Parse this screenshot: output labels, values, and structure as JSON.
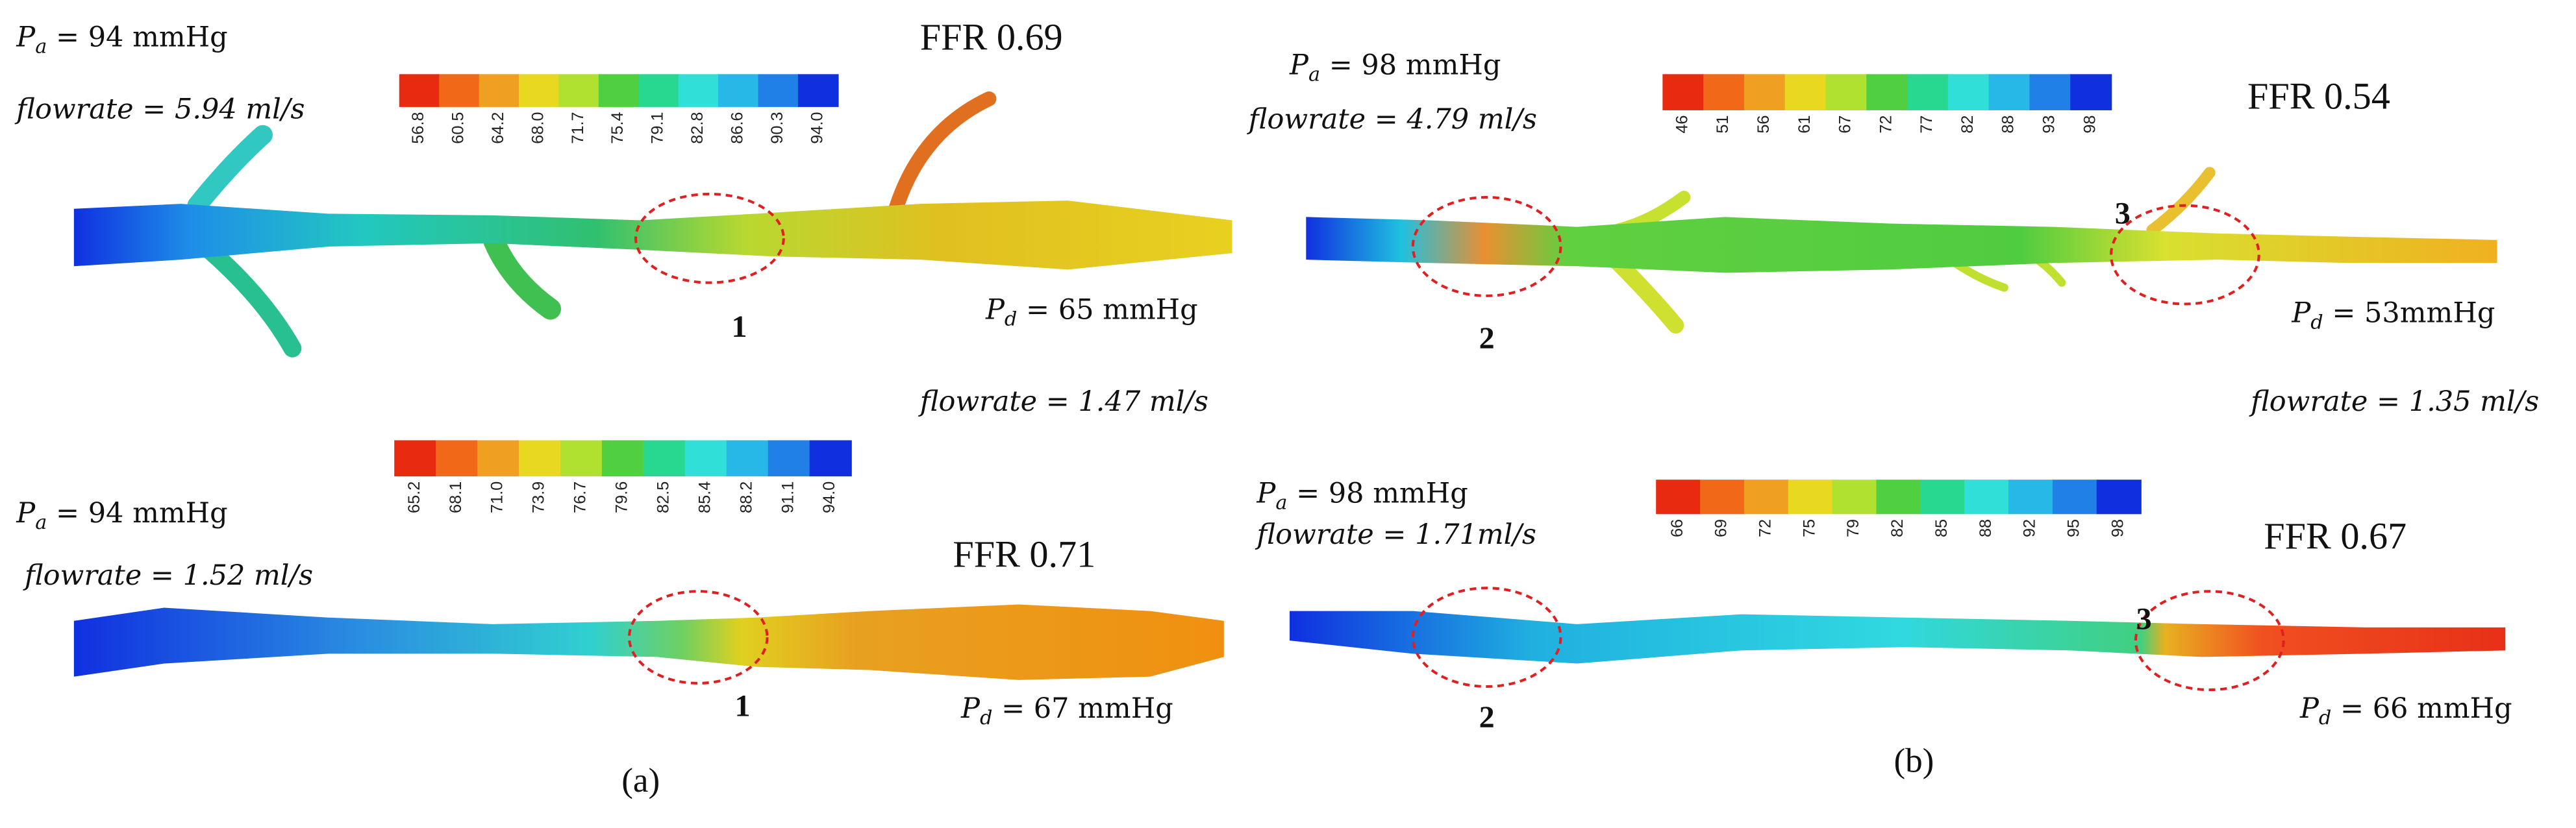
{
  "panels": [
    {
      "pa": {
        "var": "P",
        "sub": "a",
        "rest": " = 94 mmHg"
      },
      "flow_in": "flowrate = 5.94 ml/s",
      "ffr": "FFR 0.69",
      "colorbar": [
        "56.8",
        "60.5",
        "64.2",
        "68.0",
        "71.7",
        "75.4",
        "79.1",
        "82.8",
        "86.6",
        "90.3",
        "94.0"
      ],
      "lesions": [
        "1"
      ],
      "pd": {
        "var": "P",
        "sub": "d",
        "rest": " = 65 mmHg"
      },
      "flow_out": "flowrate = 1.47 ml/s"
    },
    {
      "pa": {
        "var": "P",
        "sub": "a",
        "rest": " = 98 mmHg"
      },
      "flow_in": "flowrate = 4.79 ml/s",
      "ffr": "FFR 0.54",
      "colorbar": [
        "46",
        "51",
        "56",
        "61",
        "67",
        "72",
        "77",
        "82",
        "88",
        "93",
        "98"
      ],
      "lesions": [
        "2",
        "3"
      ],
      "pd": {
        "var": "P",
        "sub": "d",
        "rest": " = 53mmHg"
      },
      "flow_out": "flowrate = 1.35 ml/s"
    },
    {
      "pa": {
        "var": "P",
        "sub": "a",
        "rest": " = 94 mmHg"
      },
      "flow_in": "flowrate = 1.52 ml/s",
      "ffr": "FFR 0.71",
      "colorbar": [
        "65.2",
        "68.1",
        "71.0",
        "73.9",
        "76.7",
        "79.6",
        "82.5",
        "85.4",
        "88.2",
        "91.1",
        "94.0"
      ],
      "lesions": [
        "1"
      ],
      "pd": {
        "var": "P",
        "sub": "d",
        "rest": " = 67 mmHg"
      }
    },
    {
      "pa": {
        "var": "P",
        "sub": "a",
        "rest": " = 98 mmHg"
      },
      "flow_in": "flowrate = 1.71ml/s",
      "ffr": "FFR 0.67",
      "colorbar": [
        "66",
        "69",
        "72",
        "75",
        "79",
        "82",
        "85",
        "88",
        "92",
        "95",
        "98"
      ],
      "lesions": [
        "2",
        "3"
      ],
      "pd": {
        "var": "P",
        "sub": "d",
        "rest": " = 66 mmHg"
      }
    }
  ],
  "captions": [
    "(a)",
    "(b)"
  ]
}
